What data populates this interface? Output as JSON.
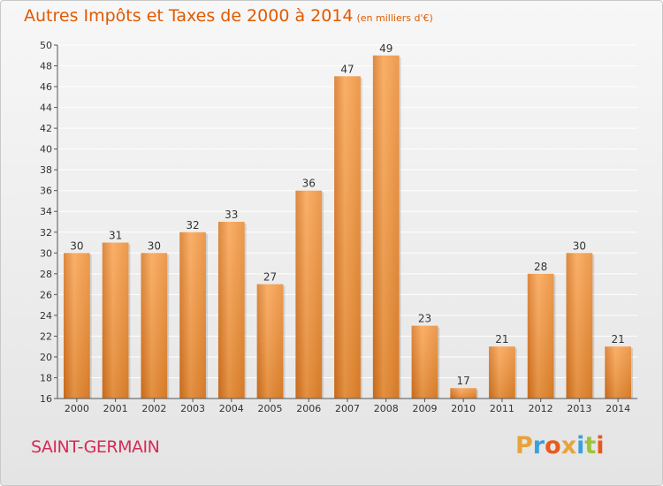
{
  "header": {
    "title": "Autres Impôts et Taxes de 2000 à 2014",
    "unit": "(en milliers d'€)"
  },
  "footer": {
    "commune": "SAINT-GERMAIN",
    "brand_letters": [
      "P",
      "r",
      "o",
      "x",
      "i",
      "t",
      "i"
    ],
    "brand_colors": [
      "#e8a33a",
      "#3aa0dc",
      "#e85a1e",
      "#e8a33a",
      "#3aa0dc",
      "#9cc43a",
      "#e85a1e"
    ]
  },
  "colors": {
    "title": "#e05a00",
    "bar_light": "#f9a24f",
    "bar_dark": "#d7741f",
    "commune": "#d52b55"
  },
  "chart_data": {
    "type": "bar",
    "title": "Autres Impôts et Taxes de 2000 à 2014",
    "subtitle": "(en milliers d'€)",
    "categories": [
      "2000",
      "2001",
      "2002",
      "2003",
      "2004",
      "2005",
      "2006",
      "2007",
      "2008",
      "2009",
      "2010",
      "2011",
      "2012",
      "2013",
      "2014"
    ],
    "values": [
      30,
      31,
      30,
      32,
      33,
      27,
      36,
      47,
      49,
      23,
      17,
      21,
      28,
      30,
      21
    ],
    "ylim": [
      16,
      50
    ],
    "yticks": [
      16,
      18,
      20,
      22,
      24,
      26,
      28,
      30,
      32,
      34,
      36,
      38,
      40,
      42,
      44,
      46,
      48,
      50
    ],
    "grid": "horizontal",
    "legend": "none",
    "data_labels": true
  }
}
